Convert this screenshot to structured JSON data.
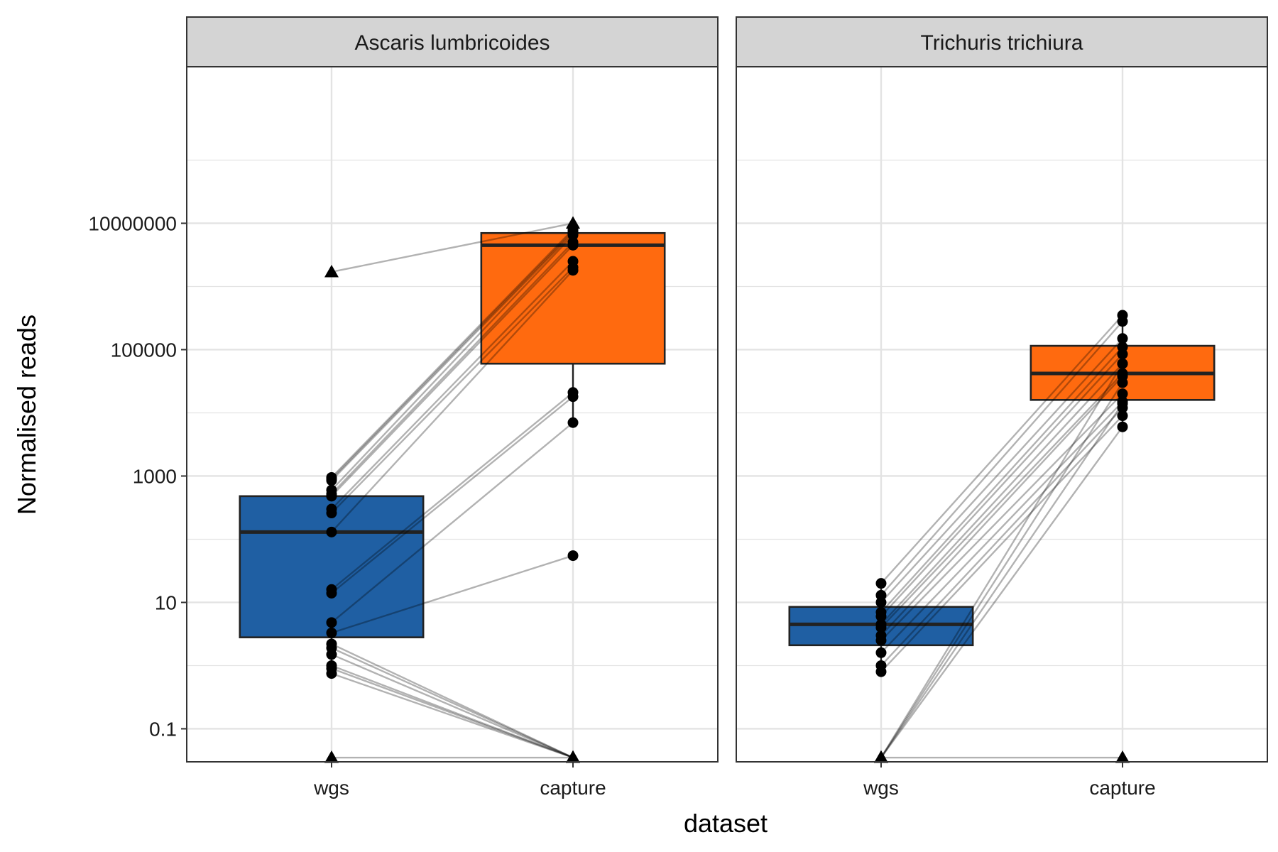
{
  "chart_data": {
    "type": "boxplot-paired",
    "xlabel": "dataset",
    "ylabel": "Normalised reads",
    "y_scale": "log10",
    "ylim": [
      0.03,
      3000000000
    ],
    "y_ticks": [
      0.1,
      10,
      1000,
      100000,
      10000000
    ],
    "y_tick_labels": [
      "0.1",
      "10",
      "1000",
      "100000",
      "10000000"
    ],
    "categories": [
      "wgs",
      "capture"
    ],
    "grid": true,
    "colors": {
      "wgs": "#1f5fa3",
      "capture": "#ff6a0f",
      "strip_bg": "#d4d4d4",
      "grid": "#e3e3e3"
    },
    "panels": [
      {
        "title": "Ascaris lumbricoides",
        "boxes": {
          "wgs": {
            "q1": 2.8,
            "median": 130,
            "q3": 480,
            "whisker_low": 0.7,
            "whisker_high": 900
          },
          "capture": {
            "q1": 60000,
            "median": 4500000,
            "q3": 7000000,
            "whisker_low": 7000,
            "whisker_high": 10000000
          }
        },
        "pairs": [
          {
            "wgs": 1700000,
            "capture": 10000000,
            "shape": "triangle"
          },
          {
            "wgs": 950,
            "capture": 8000000
          },
          {
            "wgs": 900,
            "capture": 7500000
          },
          {
            "wgs": 850,
            "capture": 7000000
          },
          {
            "wgs": 600,
            "capture": 6500000
          },
          {
            "wgs": 520,
            "capture": 5000000
          },
          {
            "wgs": 480,
            "capture": 4500000
          },
          {
            "wgs": 300,
            "capture": 2500000
          },
          {
            "wgs": 260,
            "capture": 2000000
          },
          {
            "wgs": 130,
            "capture": 1800000
          },
          {
            "wgs": 16,
            "capture": 21000
          },
          {
            "wgs": 14,
            "capture": 18000
          },
          {
            "wgs": 4.8,
            "capture": 7000
          },
          {
            "wgs": 3.3,
            "capture": 55
          },
          {
            "wgs": 2.2,
            "capture": 0.035,
            "shape": "triangle"
          },
          {
            "wgs": 1.9,
            "capture": 0.035,
            "shape": "triangle"
          },
          {
            "wgs": 1.5,
            "capture": 0.035,
            "shape": "triangle"
          },
          {
            "wgs": 1.0,
            "capture": 0.035,
            "shape": "triangle"
          },
          {
            "wgs": 0.9,
            "capture": 0.035,
            "shape": "triangle"
          },
          {
            "wgs": 0.75,
            "capture": 0.035,
            "shape": "triangle"
          },
          {
            "wgs": 0.035,
            "capture": 0.035,
            "shape": "triangle"
          }
        ]
      },
      {
        "title": "Trichuris trichiura",
        "boxes": {
          "wgs": {
            "q1": 2.1,
            "median": 4.5,
            "q3": 8.5,
            "whisker_low": 0.8,
            "whisker_high": 20
          },
          "capture": {
            "q1": 16000,
            "median": 42000,
            "q3": 115000,
            "whisker_low": 6000,
            "whisker_high": 350000
          }
        },
        "pairs": [
          {
            "wgs": 20,
            "capture": 350000
          },
          {
            "wgs": 13,
            "capture": 280000
          },
          {
            "wgs": 10,
            "capture": 150000
          },
          {
            "wgs": 7,
            "capture": 110000
          },
          {
            "wgs": 6,
            "capture": 85000
          },
          {
            "wgs": 4.5,
            "capture": 60000
          },
          {
            "wgs": 4,
            "capture": 42000
          },
          {
            "wgs": 3,
            "capture": 38000
          },
          {
            "wgs": 2.5,
            "capture": 20000
          },
          {
            "wgs": 1.6,
            "capture": 15000
          },
          {
            "wgs": 1.0,
            "capture": 12000
          },
          {
            "wgs": 0.8,
            "capture": 9000
          },
          {
            "wgs": 0.035,
            "capture": 60000,
            "shape": "triangle"
          },
          {
            "wgs": 0.035,
            "capture": 30000,
            "shape": "triangle"
          },
          {
            "wgs": 0.035,
            "capture": 14000,
            "shape": "triangle"
          },
          {
            "wgs": 0.035,
            "capture": 6000,
            "shape": "triangle"
          },
          {
            "wgs": 0.035,
            "capture": 0.035,
            "shape": "triangle"
          }
        ]
      }
    ]
  }
}
